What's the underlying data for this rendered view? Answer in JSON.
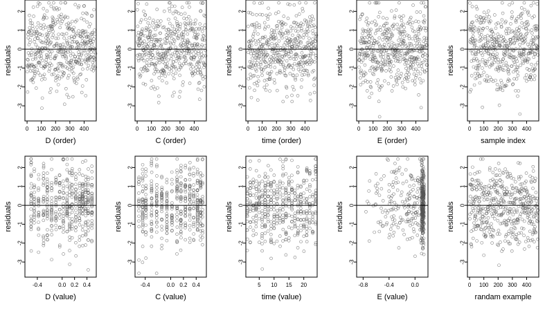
{
  "chart_data": [
    {
      "type": "scatter",
      "xlabel": "D (order)",
      "ylabel": "residuals",
      "xlim": [
        -15,
        485
      ],
      "ylim": [
        -3.8,
        2.6
      ],
      "xticks": [
        0,
        100,
        200,
        300,
        400
      ],
      "yticks": [
        -3,
        -2,
        -1,
        0,
        1,
        2
      ],
      "hline": 0,
      "n": 480,
      "kind": "order",
      "seed": 11,
      "grid": false
    },
    {
      "type": "scatter",
      "xlabel": "C (order)",
      "ylabel": "residuals",
      "xlim": [
        -15,
        485
      ],
      "ylim": [
        -3.8,
        2.6
      ],
      "xticks": [
        0,
        100,
        200,
        300,
        400
      ],
      "yticks": [
        -3,
        -2,
        -1,
        0,
        1,
        2
      ],
      "hline": 0,
      "n": 480,
      "kind": "order",
      "seed": 23,
      "grid": false
    },
    {
      "type": "scatter",
      "xlabel": "time (order)",
      "ylabel": "residuals",
      "xlim": [
        -15,
        485
      ],
      "ylim": [
        -3.8,
        2.6
      ],
      "xticks": [
        0,
        100,
        200,
        300,
        400
      ],
      "yticks": [
        -3,
        -2,
        -1,
        0,
        1,
        2
      ],
      "hline": 0,
      "n": 480,
      "kind": "order",
      "seed": 37,
      "grid": false
    },
    {
      "type": "scatter",
      "xlabel": "E (order)",
      "ylabel": "residuals",
      "xlim": [
        -15,
        485
      ],
      "ylim": [
        -3.8,
        2.6
      ],
      "xticks": [
        0,
        100,
        200,
        300,
        400
      ],
      "yticks": [
        -3,
        -2,
        -1,
        0,
        1,
        2
      ],
      "hline": 0,
      "n": 480,
      "kind": "order",
      "seed": 41,
      "grid": false
    },
    {
      "type": "scatter",
      "xlabel": "sample index",
      "ylabel": "residuals",
      "xlim": [
        -15,
        485
      ],
      "ylim": [
        -3.8,
        2.6
      ],
      "xticks": [
        0,
        100,
        200,
        300,
        400
      ],
      "yticks": [
        -3,
        -2,
        -1,
        0,
        1,
        2
      ],
      "hline": 0,
      "n": 480,
      "kind": "order",
      "seed": 53,
      "grid": false
    },
    {
      "type": "scatter",
      "xlabel": "D (value)",
      "ylabel": "residuals",
      "xlim": [
        -0.6,
        0.55
      ],
      "ylim": [
        -3.8,
        2.6
      ],
      "xticks": [
        -0.4,
        0.0,
        0.2,
        0.4
      ],
      "xticklabels": [
        "-0.4",
        "0.0",
        "0.2",
        "0.4"
      ],
      "yticks": [
        -3,
        -2,
        -1,
        0,
        1,
        2
      ],
      "hline": 0,
      "n": 480,
      "kind": "discrete",
      "levels": [
        -0.5,
        -0.45,
        -0.38,
        -0.3,
        -0.24,
        -0.17,
        -0.1,
        -0.04,
        0.02,
        0.08,
        0.12,
        0.16,
        0.22,
        0.28,
        0.33,
        0.38,
        0.42,
        0.48
      ],
      "seed": 61,
      "grid": false
    },
    {
      "type": "scatter",
      "xlabel": "C (value)",
      "ylabel": "residuals",
      "xlim": [
        -0.56,
        0.56
      ],
      "ylim": [
        -3.8,
        2.6
      ],
      "xticks": [
        -0.4,
        0.0,
        0.2,
        0.4
      ],
      "xticklabels": [
        "-0.4",
        "0.0",
        "0.2",
        "0.4"
      ],
      "yticks": [
        -3,
        -2,
        -1,
        0,
        1,
        2
      ],
      "hline": 0,
      "n": 480,
      "kind": "discrete",
      "levels": [
        -0.5,
        -0.44,
        -0.39,
        -0.3,
        -0.22,
        -0.14,
        -0.06,
        0.02,
        0.1,
        0.16,
        0.23,
        0.3,
        0.36,
        0.42,
        0.47,
        0.5
      ],
      "seed": 73,
      "grid": false
    },
    {
      "type": "scatter",
      "xlabel": "time (value)",
      "ylabel": "residuals",
      "xlim": [
        0.5,
        24.5
      ],
      "ylim": [
        -3.8,
        2.6
      ],
      "xticks": [
        5,
        10,
        15,
        20
      ],
      "xticklabels": [
        "5",
        "10",
        "15",
        "20"
      ],
      "yticks": [
        -3,
        -2,
        -1,
        0,
        1,
        2
      ],
      "hline": 0,
      "n": 480,
      "kind": "discrete",
      "levels": [
        1,
        2,
        3,
        4,
        5,
        6,
        7,
        8,
        9,
        10,
        11,
        12,
        13,
        14,
        15,
        16,
        17,
        18,
        19,
        20,
        21,
        22,
        23,
        24
      ],
      "seed": 89,
      "grid": false
    },
    {
      "type": "scatter",
      "xlabel": "E (value)",
      "ylabel": "residuals",
      "xlim": [
        -0.9,
        0.2
      ],
      "ylim": [
        -3.8,
        2.6
      ],
      "xticks": [
        -0.8,
        -0.4,
        0.0
      ],
      "xticklabels": [
        "-0.8",
        "-0.4",
        "0.0"
      ],
      "yticks": [
        -3,
        -2,
        -1,
        0,
        1,
        2
      ],
      "hline": 0,
      "n": 480,
      "kind": "skew",
      "seed": 97,
      "grid": false
    },
    {
      "type": "scatter",
      "xlabel": "randam example",
      "ylabel": "residuals",
      "xlim": [
        -15,
        485
      ],
      "ylim": [
        -3.8,
        2.6
      ],
      "xticks": [
        0,
        100,
        200,
        300,
        400
      ],
      "yticks": [
        -3,
        -2,
        -1,
        0,
        1,
        2
      ],
      "hline": 0,
      "n": 480,
      "kind": "order",
      "seed": 101,
      "grid": false
    }
  ],
  "colors": {
    "point": "#555555",
    "axis": "#000000",
    "background": "#ffffff"
  }
}
